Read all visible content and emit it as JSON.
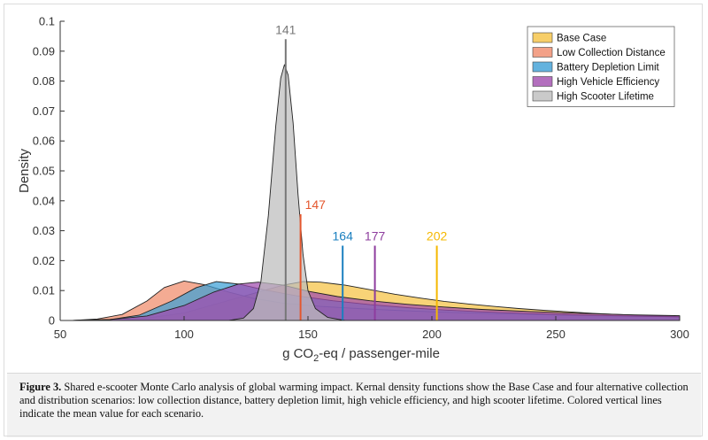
{
  "chart_data": {
    "type": "area",
    "xlabel_parts": {
      "pre": "g CO",
      "sub": "2",
      "post": "-eq / passenger-mile"
    },
    "ylabel": "Density",
    "xlim": [
      50,
      300
    ],
    "ylim": [
      0,
      0.1
    ],
    "xticks": [
      50,
      100,
      150,
      200,
      250,
      300
    ],
    "yticks": [
      0,
      0.01,
      0.02,
      0.03,
      0.04,
      0.05,
      0.06,
      0.07,
      0.08,
      0.09,
      0.1
    ],
    "ytick_labels": [
      "0",
      "0.01",
      "0.02",
      "0.03",
      "0.04",
      "0.05",
      "0.06",
      "0.07",
      "0.08",
      "0.09",
      "0.1"
    ],
    "grid": false,
    "legend_position": "top-right",
    "series": [
      {
        "name": "Base Case",
        "color": "#F5C242",
        "mean": 202,
        "mean_label": "202",
        "mean_line_top": 0.025,
        "mean_label_color": "#F5B800",
        "points": [
          [
            55,
            0
          ],
          [
            70,
            0.0002
          ],
          [
            85,
            0.0008
          ],
          [
            100,
            0.0025
          ],
          [
            115,
            0.006
          ],
          [
            130,
            0.0095
          ],
          [
            140,
            0.0118
          ],
          [
            148,
            0.013
          ],
          [
            155,
            0.0128
          ],
          [
            165,
            0.0118
          ],
          [
            175,
            0.0103
          ],
          [
            185,
            0.0088
          ],
          [
            195,
            0.0075
          ],
          [
            205,
            0.0064
          ],
          [
            215,
            0.0055
          ],
          [
            225,
            0.0047
          ],
          [
            235,
            0.004
          ],
          [
            245,
            0.0034
          ],
          [
            255,
            0.0029
          ],
          [
            265,
            0.0024
          ],
          [
            275,
            0.002
          ],
          [
            285,
            0.0017
          ],
          [
            300,
            0.0013
          ]
        ]
      },
      {
        "name": "Low Collection Distance",
        "color": "#F08A6A",
        "mean": 147,
        "mean_label": "147",
        "mean_line_top": 0.0355,
        "mean_label_color": "#E4572E",
        "points": [
          [
            55,
            0
          ],
          [
            65,
            0.0005
          ],
          [
            75,
            0.002
          ],
          [
            85,
            0.0065
          ],
          [
            92,
            0.011
          ],
          [
            100,
            0.0132
          ],
          [
            108,
            0.012
          ],
          [
            118,
            0.0095
          ],
          [
            128,
            0.0074
          ],
          [
            140,
            0.0058
          ],
          [
            155,
            0.0047
          ],
          [
            170,
            0.004
          ],
          [
            185,
            0.0034
          ],
          [
            200,
            0.0029
          ],
          [
            220,
            0.0024
          ],
          [
            240,
            0.002
          ],
          [
            260,
            0.0017
          ],
          [
            280,
            0.0014
          ],
          [
            300,
            0.0012
          ]
        ]
      },
      {
        "name": "Battery Depletion Limit",
        "color": "#3C9FD6",
        "mean": 164,
        "mean_label": "164",
        "mean_line_top": 0.025,
        "mean_label_color": "#1A7FBF",
        "points": [
          [
            55,
            0
          ],
          [
            70,
            0.0003
          ],
          [
            82,
            0.0018
          ],
          [
            95,
            0.0065
          ],
          [
            105,
            0.011
          ],
          [
            113,
            0.013
          ],
          [
            122,
            0.0122
          ],
          [
            132,
            0.0103
          ],
          [
            145,
            0.0083
          ],
          [
            160,
            0.0066
          ],
          [
            175,
            0.0053
          ],
          [
            190,
            0.0043
          ],
          [
            205,
            0.0035
          ],
          [
            220,
            0.0029
          ],
          [
            240,
            0.0023
          ],
          [
            260,
            0.0018
          ],
          [
            280,
            0.0015
          ],
          [
            300,
            0.0012
          ]
        ]
      },
      {
        "name": "High Vehicle Efficiency",
        "color": "#A04BAE",
        "mean": 177,
        "mean_label": "177",
        "mean_line_top": 0.025,
        "mean_label_color": "#8E3D9E",
        "points": [
          [
            55,
            0
          ],
          [
            70,
            0.0003
          ],
          [
            85,
            0.0015
          ],
          [
            100,
            0.005
          ],
          [
            112,
            0.0095
          ],
          [
            122,
            0.0122
          ],
          [
            130,
            0.0128
          ],
          [
            140,
            0.0118
          ],
          [
            150,
            0.0098
          ],
          [
            162,
            0.008
          ],
          [
            175,
            0.0066
          ],
          [
            190,
            0.0054
          ],
          [
            205,
            0.0045
          ],
          [
            220,
            0.0037
          ],
          [
            240,
            0.003
          ],
          [
            260,
            0.0024
          ],
          [
            280,
            0.0019
          ],
          [
            300,
            0.0016
          ]
        ]
      },
      {
        "name": "High Scooter Lifetime",
        "color": "#BDBDBD",
        "mean": 141,
        "mean_label": "141",
        "mean_line_top": 0.094,
        "mean_label_color": "#777777",
        "points": [
          [
            118,
            0
          ],
          [
            124,
            0.0008
          ],
          [
            128,
            0.004
          ],
          [
            131,
            0.013
          ],
          [
            134,
            0.035
          ],
          [
            137,
            0.065
          ],
          [
            139,
            0.081
          ],
          [
            140.5,
            0.0855
          ],
          [
            142,
            0.082
          ],
          [
            144,
            0.066
          ],
          [
            146,
            0.042
          ],
          [
            148,
            0.022
          ],
          [
            150,
            0.01
          ],
          [
            153,
            0.004
          ],
          [
            158,
            0.001
          ],
          [
            165,
            0
          ]
        ]
      }
    ]
  },
  "caption": {
    "label": "Figure 3.",
    "text": " Shared e-scooter Monte Carlo analysis of global warming impact. Kernal density functions show the Base Case and four alternative collection and distribution scenarios: low collection distance, battery depletion limit, high vehicle efficiency, and high scooter lifetime. Colored vertical lines indicate the mean value for each scenario."
  }
}
